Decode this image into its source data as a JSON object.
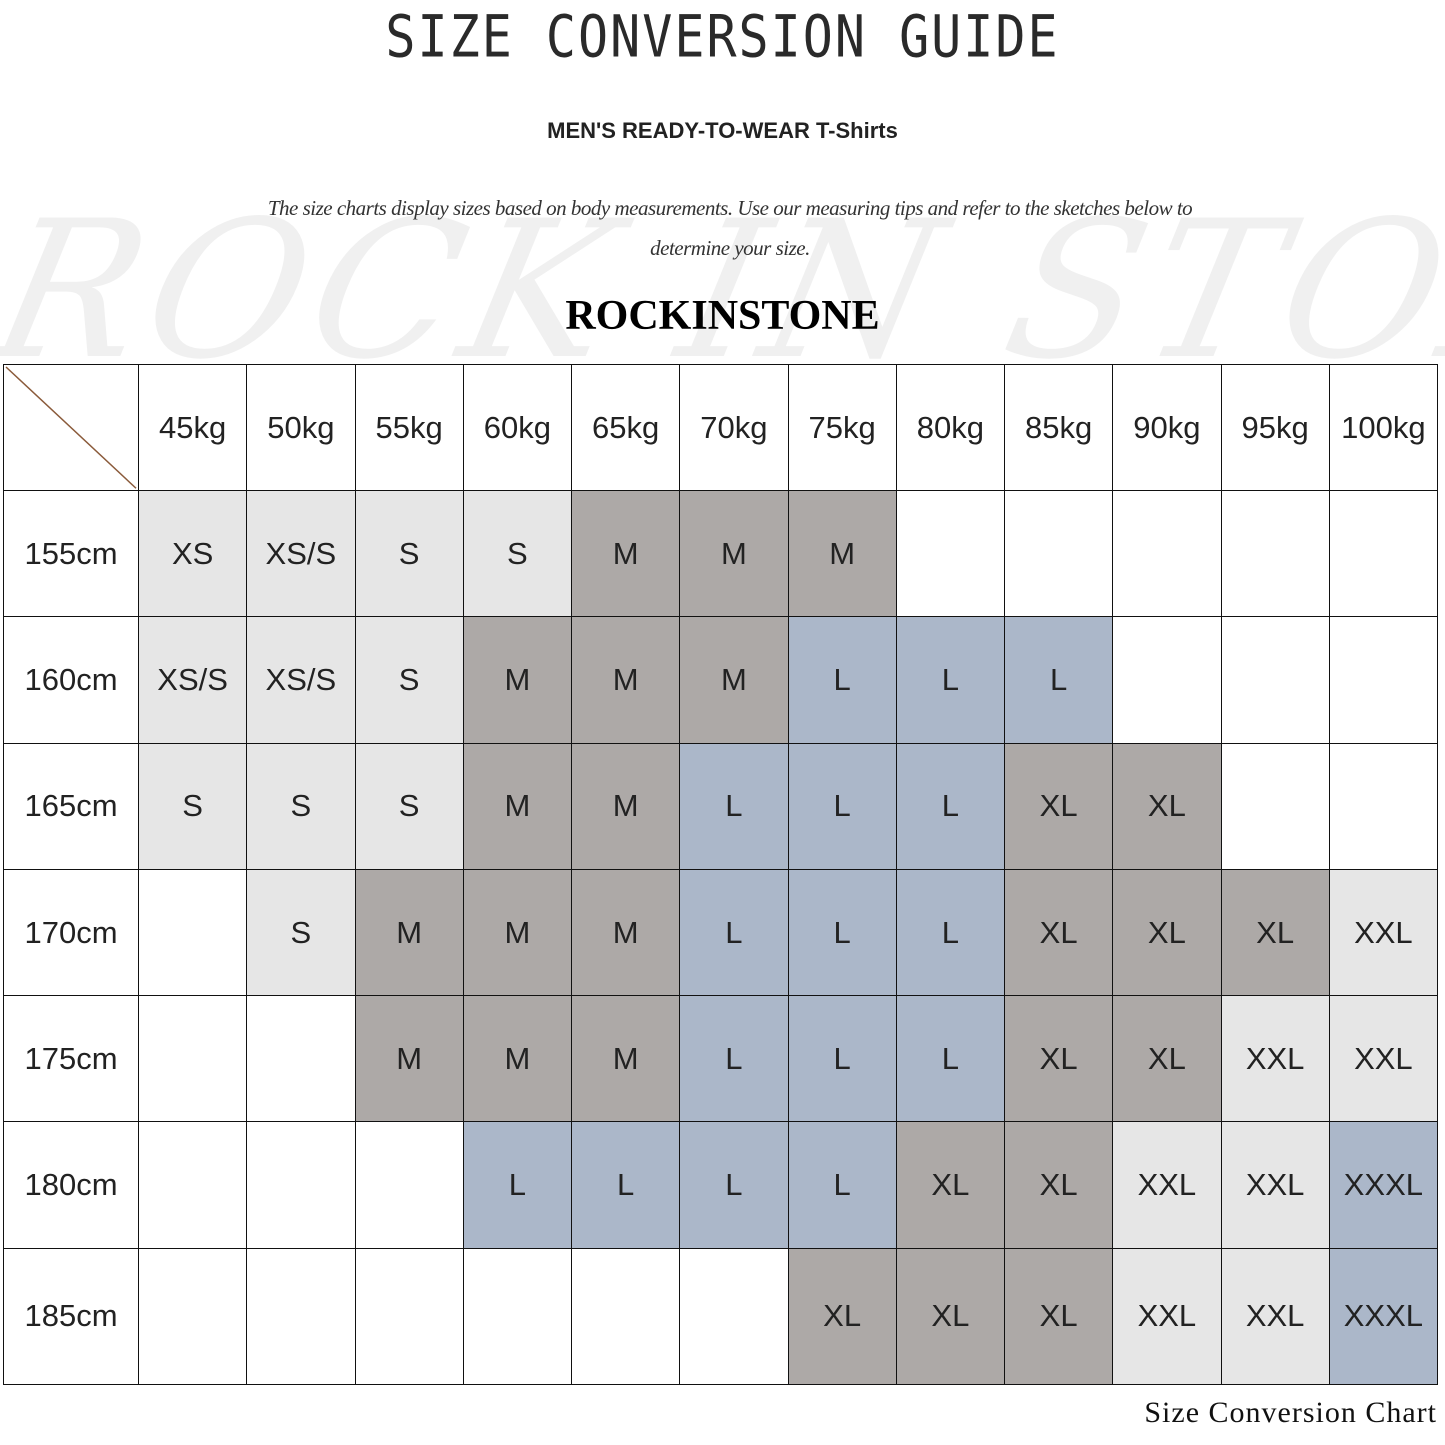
{
  "title": "SIZE CONVERSION GUIDE",
  "subtitle": "MEN'S READY-TO-WEAR T-Shirts",
  "description": "The size charts display sizes based on body measurements. Use our measuring tips and refer to the sketches below to determine your size.",
  "watermark": "RockInStone",
  "brand": "ROCKINSTONE",
  "footer": "Size Conversion Chart",
  "size_colors": {
    "XS": "#e6e6e6",
    "XS/S": "#e6e6e6",
    "S": "#e6e6e6",
    "XXL": "#e6e6e6",
    "M": "#ada9a7",
    "XL": "#ada9a7",
    "L": "#abb7c9",
    "XXXL": "#abb7c9"
  },
  "table": {
    "weights": [
      "45kg",
      "50kg",
      "55kg",
      "60kg",
      "65kg",
      "70kg",
      "75kg",
      "80kg",
      "85kg",
      "90kg",
      "95kg",
      "100kg"
    ],
    "rows": [
      {
        "height": "155cm",
        "sizes": [
          "XS",
          "XS/S",
          "S",
          "S",
          "M",
          "M",
          "M",
          "",
          "",
          "",
          "",
          ""
        ]
      },
      {
        "height": "160cm",
        "sizes": [
          "XS/S",
          "XS/S",
          "S",
          "M",
          "M",
          "M",
          "L",
          "L",
          "L",
          "",
          "",
          ""
        ]
      },
      {
        "height": "165cm",
        "sizes": [
          "S",
          "S",
          "S",
          "M",
          "M",
          "L",
          "L",
          "L",
          "XL",
          "XL",
          "",
          ""
        ]
      },
      {
        "height": "170cm",
        "sizes": [
          "",
          "S",
          "M",
          "M",
          "M",
          "L",
          "L",
          "L",
          "XL",
          "XL",
          "XL",
          "XXL"
        ]
      },
      {
        "height": "175cm",
        "sizes": [
          "",
          "",
          "M",
          "M",
          "M",
          "L",
          "L",
          "L",
          "XL",
          "XL",
          "XXL",
          "XXL"
        ]
      },
      {
        "height": "180cm",
        "sizes": [
          "",
          "",
          "",
          "L",
          "L",
          "L",
          "L",
          "XL",
          "XL",
          "XXL",
          "XXL",
          "XXXL"
        ]
      },
      {
        "height": "185cm",
        "sizes": [
          "",
          "",
          "",
          "",
          "",
          "",
          "XL",
          "XL",
          "XL",
          "XXL",
          "XXL",
          "XXXL"
        ]
      }
    ]
  }
}
